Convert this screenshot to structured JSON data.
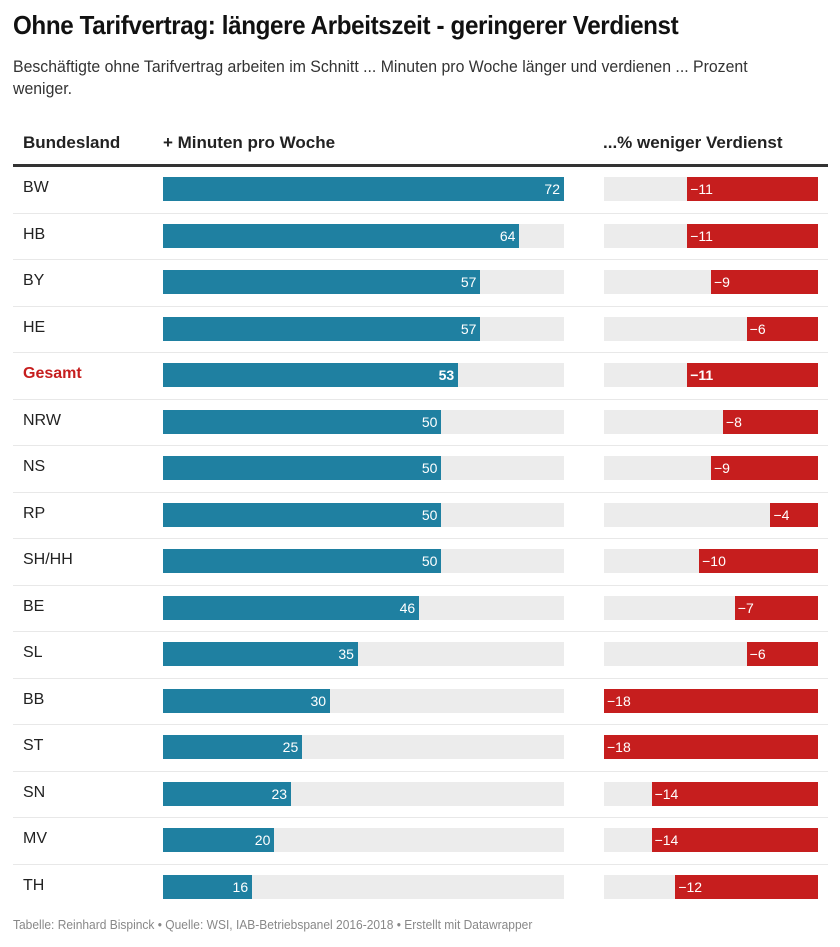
{
  "title": "Ohne Tarifvertrag: längere Arbeitszeit - geringerer Verdienst",
  "subtitle": "Beschäftigte ohne Tarifvertrag arbeiten im Schnitt ... Minuten pro Woche länger und verdienen ... Prozent weniger.",
  "footer": "Tabelle: Reinhard Bispinck • Quelle: WSI, IAB-Betriebspanel 2016-2018 • Erstellt mit Datawrapper",
  "colors": {
    "minutes_bar": "#1f80a1",
    "pct_bar": "#c61e1e",
    "highlight_label": "#c61e1e",
    "track": "#ececec"
  },
  "chart_data": {
    "type": "table",
    "title": "Ohne Tarifvertrag: längere Arbeitszeit - geringerer Verdienst",
    "columns": [
      "Bundesland",
      "+ Minuten pro Woche",
      "...% weniger Verdienst"
    ],
    "minutes_range": [
      0,
      72
    ],
    "pct_range": [
      -18,
      0
    ],
    "highlight_row": "Gesamt",
    "rows": [
      {
        "land": "BW",
        "minutes": 72,
        "pct": -11
      },
      {
        "land": "HB",
        "minutes": 64,
        "pct": -11
      },
      {
        "land": "BY",
        "minutes": 57,
        "pct": -9
      },
      {
        "land": "HE",
        "minutes": 57,
        "pct": -6
      },
      {
        "land": "Gesamt",
        "minutes": 53,
        "pct": -11
      },
      {
        "land": "NRW",
        "minutes": 50,
        "pct": -8
      },
      {
        "land": "NS",
        "minutes": 50,
        "pct": -9
      },
      {
        "land": "RP",
        "minutes": 50,
        "pct": -4
      },
      {
        "land": "SH/HH",
        "minutes": 50,
        "pct": -10
      },
      {
        "land": "BE",
        "minutes": 46,
        "pct": -7
      },
      {
        "land": "SL",
        "minutes": 35,
        "pct": -6
      },
      {
        "land": "BB",
        "minutes": 30,
        "pct": -18
      },
      {
        "land": "ST",
        "minutes": 25,
        "pct": -18
      },
      {
        "land": "SN",
        "minutes": 23,
        "pct": -14
      },
      {
        "land": "MV",
        "minutes": 20,
        "pct": -14
      },
      {
        "land": "TH",
        "minutes": 16,
        "pct": -12
      }
    ]
  }
}
